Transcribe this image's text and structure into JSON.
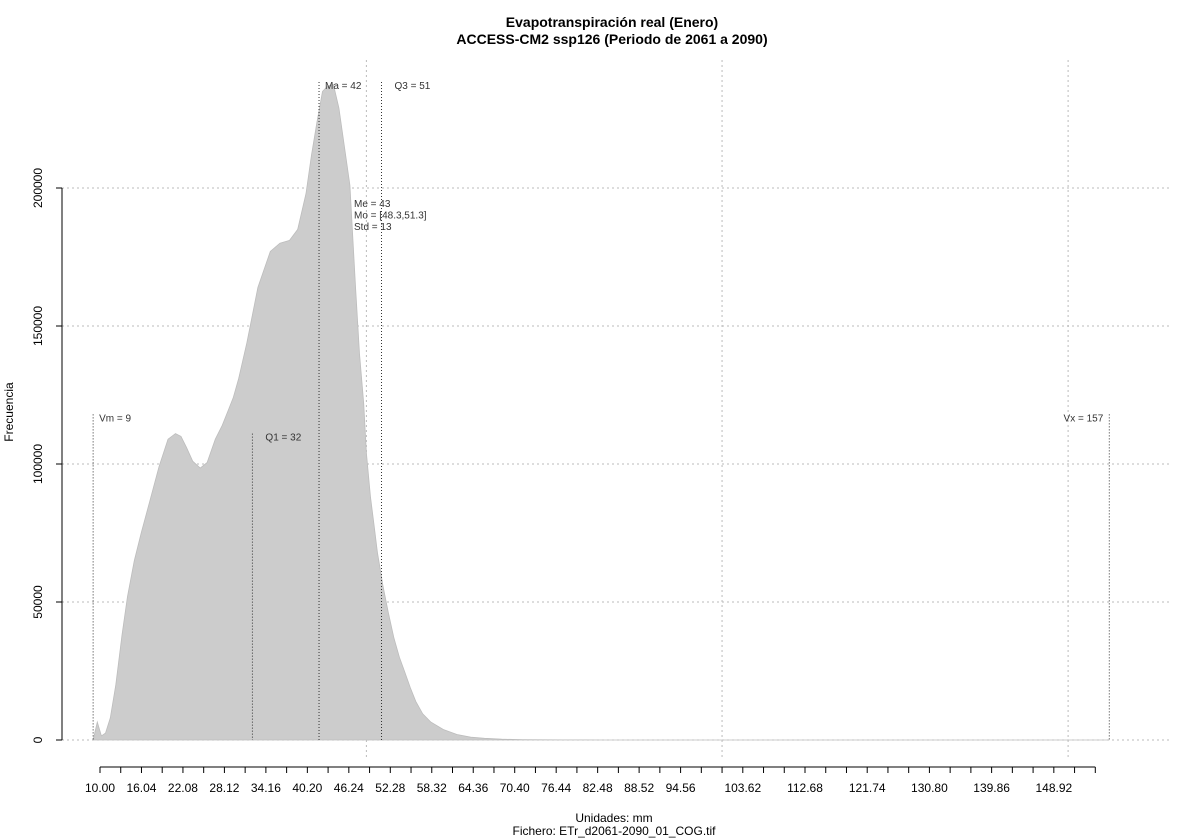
{
  "chart_data": {
    "type": "area",
    "title": "Evapotranspiración real (Enero)",
    "subtitle": "ACCESS-CM2 ssp126 (Periodo de 2061 a 2090)",
    "xlabel": "Unidades: mm",
    "ylabel": "Frecuencia",
    "footer": "Fichero: ETr_d2061-2090_01_COG.tif",
    "xlim": [
      8.6,
      157.5
    ],
    "ylim": [
      0,
      240000
    ],
    "grid": true,
    "fill_color": "#cccccc",
    "x_ticks": [
      "10.00",
      "16.04",
      "22.08",
      "28.12",
      "34.16",
      "40.20",
      "46.24",
      "52.28",
      "58.32",
      "64.36",
      "70.40",
      "76.44",
      "82.48",
      "88.52",
      "94.56",
      "103.62",
      "112.68",
      "121.74",
      "130.80",
      "139.86",
      "148.92"
    ],
    "x_minor_ticks": [
      10.0,
      13.02,
      16.04,
      19.06,
      22.08,
      25.1,
      28.12,
      31.14,
      34.16,
      37.18,
      40.2,
      43.22,
      46.24,
      49.26,
      52.28,
      55.3,
      58.32,
      61.34,
      64.36,
      67.38,
      70.4,
      73.42,
      76.44,
      79.46,
      82.48,
      85.5,
      88.52,
      91.54,
      94.56,
      97.58,
      100.6,
      103.62,
      106.64,
      109.66,
      112.68,
      115.7,
      118.72,
      121.74,
      124.76,
      127.78,
      130.8,
      133.82,
      136.84,
      139.86,
      142.88,
      145.9,
      148.92,
      151.94,
      154.96
    ],
    "y_ticks": [
      "0",
      "50000",
      "100000",
      "150000",
      "200000"
    ],
    "y_tick_values": [
      0,
      50000,
      100000,
      150000,
      200000
    ],
    "x_grid": [
      48.8,
      100.6,
      151.0
    ],
    "series": [
      {
        "x": [
          9,
          9.6,
          10.2,
          10.8,
          11.5,
          12.3,
          13.2,
          14.0,
          15.0,
          16.0,
          17.2,
          18.6,
          19.9,
          21.0,
          21.8,
          22.6,
          23.5,
          24.6,
          25.6,
          26.8,
          27.8,
          28.6,
          29.4,
          30.2,
          31.4,
          33.0,
          34.8,
          36.2,
          37.6,
          38.8,
          40.0,
          40.8,
          41.6,
          42.4,
          43.2,
          44.0,
          44.8,
          45.6,
          46.4,
          47.2,
          47.8,
          48.4,
          48.8,
          49.4,
          49.9,
          50.4,
          51.2,
          52.0,
          52.8,
          53.6,
          54.4,
          55.2,
          56.0,
          57.0,
          58.2,
          60.0,
          62.0,
          64.0,
          66.0,
          68.5,
          71.5,
          74.5,
          77.5,
          80.5,
          83.5,
          86.5,
          90.0,
          94.0,
          100.0,
          110.0,
          130.0,
          150.0,
          157.0
        ],
        "y": [
          0,
          6500,
          1500,
          2500,
          8000,
          20000,
          38000,
          52000,
          65000,
          75000,
          86000,
          99000,
          109000,
          111000,
          110000,
          106000,
          101000,
          98500,
          100500,
          109000,
          114000,
          119000,
          124000,
          131000,
          144000,
          164000,
          177000,
          180000,
          181000,
          185000,
          198000,
          212000,
          224000,
          235000,
          237000,
          237500,
          229000,
          215000,
          201000,
          165000,
          140000,
          122000,
          104000,
          88000,
          78000,
          68000,
          56000,
          46000,
          37000,
          30000,
          24500,
          19000,
          14000,
          9500,
          6500,
          3800,
          2000,
          1000,
          600,
          300,
          150,
          80,
          40,
          20,
          10,
          5,
          0,
          0,
          0,
          0,
          0,
          0,
          0
        ]
      }
    ],
    "vertical_markers": [
      {
        "label": "Vm = 9",
        "x": 9.0,
        "top": 118000,
        "label_side": "right"
      },
      {
        "label": "Q1 = 32",
        "x": 32.2,
        "top": 111000,
        "label_side": "right-offset"
      },
      {
        "label": "Ma = 42",
        "x": 41.9,
        "top": 237000,
        "label_side": "right"
      },
      {
        "label": "Q3 = 51",
        "x": 51.0,
        "top": 237000,
        "label_side": "right-offset"
      },
      {
        "label": "Vx = 157",
        "x": 157.0,
        "top": 118000,
        "label_side": "left"
      }
    ],
    "stats_block": [
      "Me = 43",
      "Mo = [48.3,51.3]",
      "Std = 13"
    ]
  }
}
